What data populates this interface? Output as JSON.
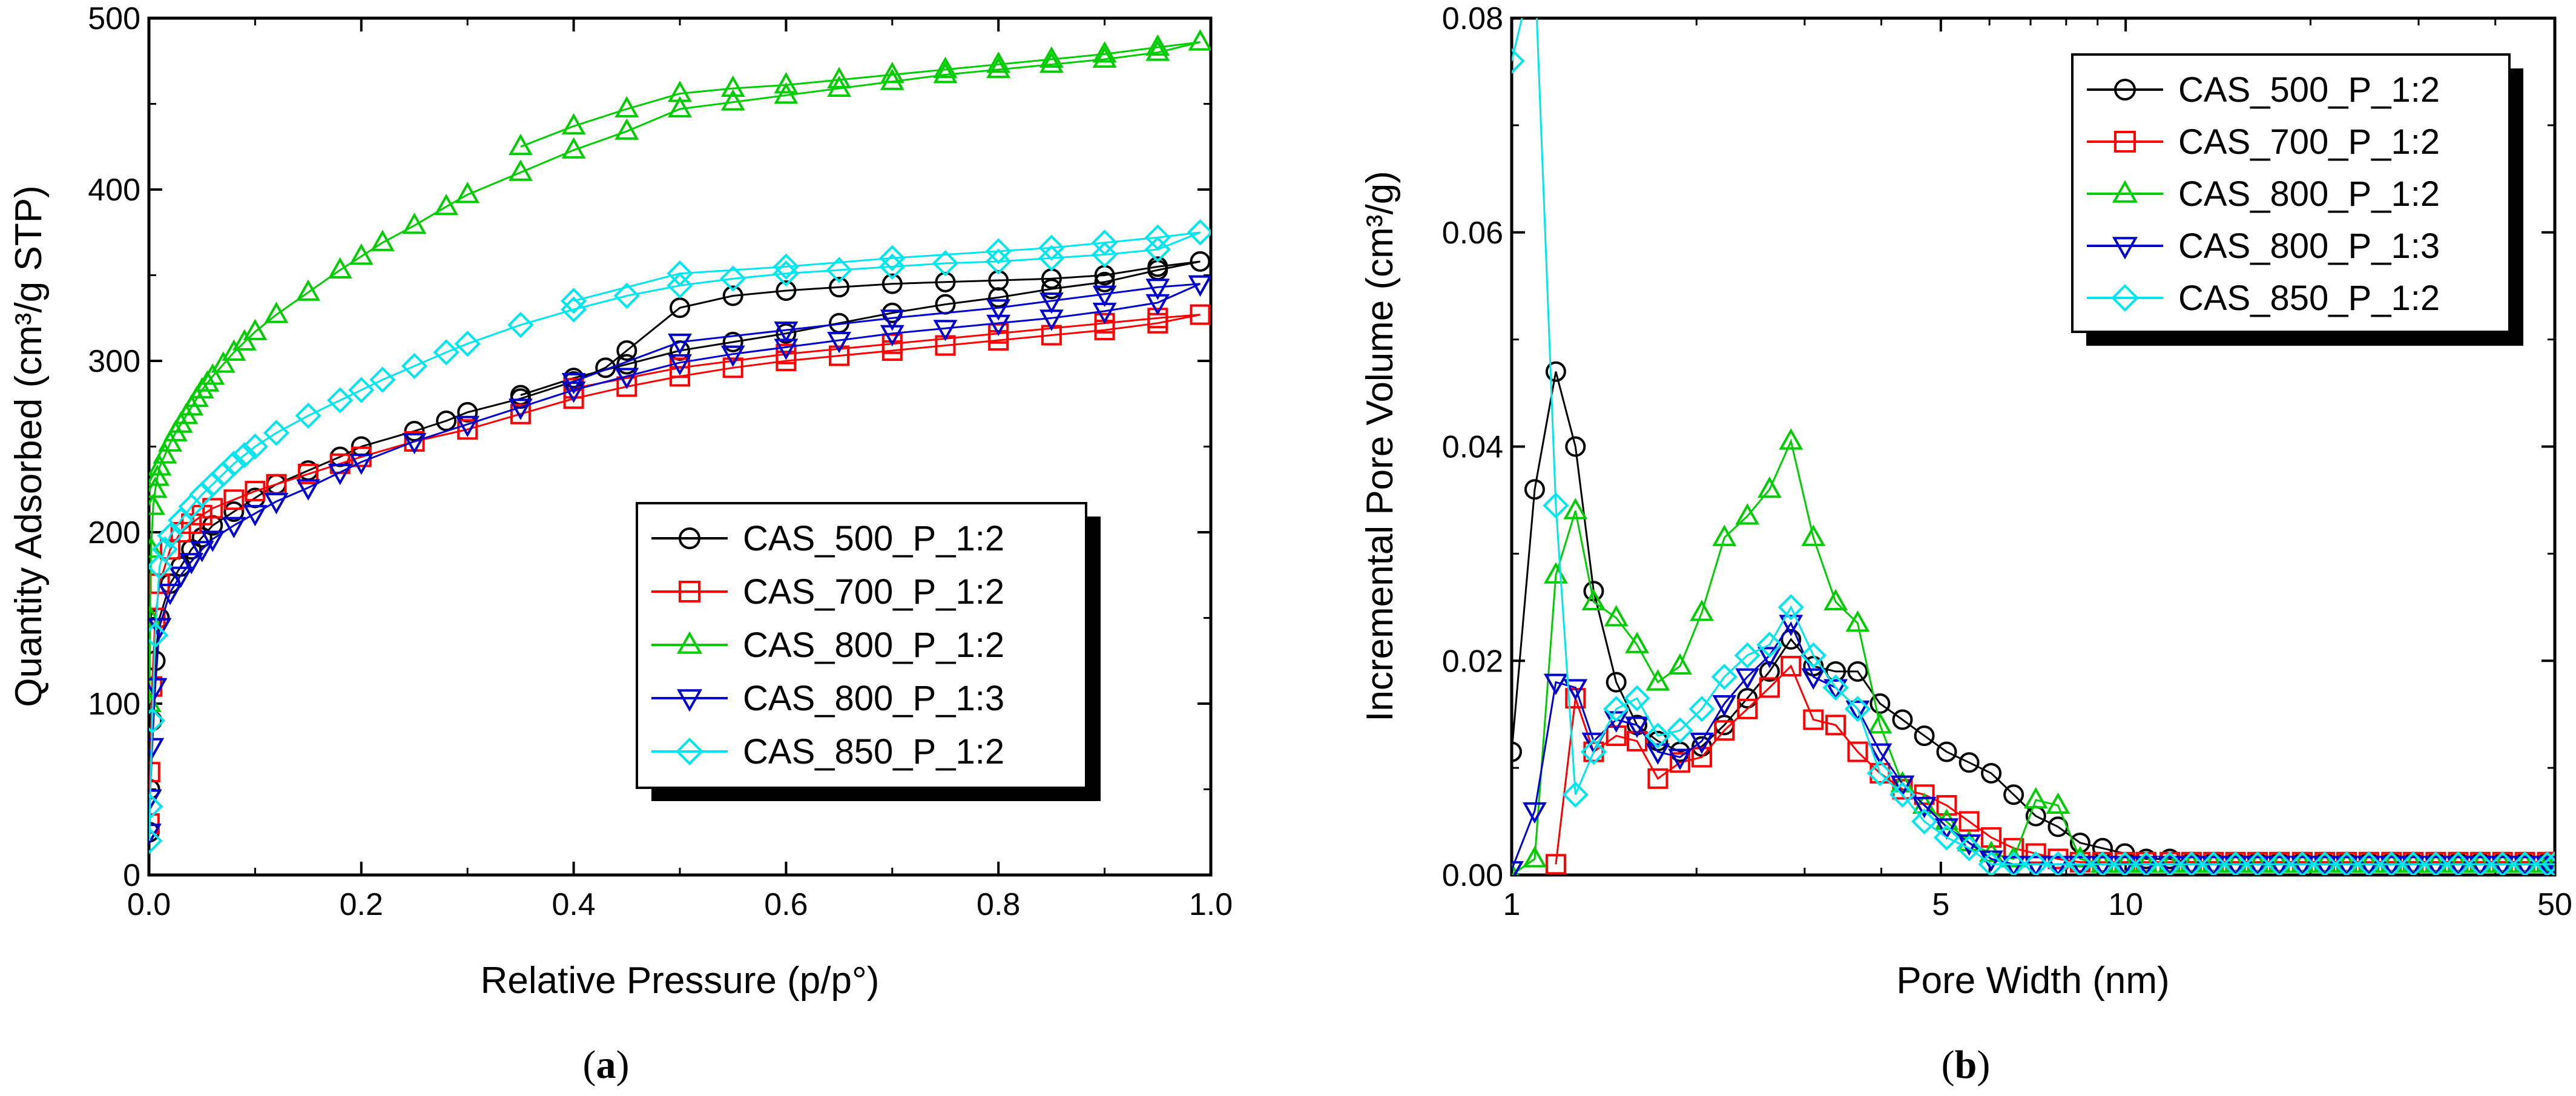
{
  "chart_data": [
    {
      "type": "scatter",
      "panel_label": "a",
      "xlabel": "Relative Pressure (p/p°)",
      "ylabel": "Quantity Adsorbed (cm³/g STP)",
      "xlim": [
        0,
        1.0
      ],
      "ylim": [
        0,
        500
      ],
      "xticks": [
        "0.0",
        "0.2",
        "0.4",
        "0.6",
        "0.8",
        "1.0"
      ],
      "yticks": [
        "0",
        "100",
        "200",
        "300",
        "400",
        "500"
      ],
      "legend_position": "bottom-right",
      "series": [
        {
          "name": "CAS_500_P_1:2",
          "color": "#000000",
          "marker": "circle",
          "x": [
            0.0005,
            0.001,
            0.003,
            0.006,
            0.01,
            0.02,
            0.03,
            0.04,
            0.05,
            0.06,
            0.08,
            0.1,
            0.12,
            0.15,
            0.18,
            0.2,
            0.25,
            0.28,
            0.3,
            0.35,
            0.4,
            0.43,
            0.45,
            0.5,
            0.55,
            0.6,
            0.65,
            0.7,
            0.75,
            0.8,
            0.85,
            0.9,
            0.95,
            0.99,
            0.95,
            0.9,
            0.85,
            0.8,
            0.75,
            0.7,
            0.65,
            0.6,
            0.55,
            0.5,
            0.45,
            0.4,
            0.35
          ],
          "y": [
            25,
            50,
            90,
            125,
            150,
            170,
            180,
            190,
            197,
            204,
            212,
            220,
            228,
            236,
            244,
            250,
            259,
            265,
            270,
            278,
            288,
            296,
            306,
            331,
            338,
            341,
            343,
            345,
            346,
            347,
            348,
            350,
            355,
            358,
            353,
            346,
            342,
            337,
            333,
            328,
            322,
            316,
            311,
            306,
            298,
            290,
            280
          ]
        },
        {
          "name": "CAS_700_P_1:2",
          "color": "#ff0000",
          "marker": "square",
          "x": [
            0.0005,
            0.001,
            0.003,
            0.006,
            0.01,
            0.02,
            0.03,
            0.04,
            0.05,
            0.06,
            0.08,
            0.1,
            0.12,
            0.15,
            0.18,
            0.2,
            0.25,
            0.3,
            0.35,
            0.4,
            0.45,
            0.5,
            0.55,
            0.6,
            0.65,
            0.7,
            0.75,
            0.8,
            0.85,
            0.9,
            0.95,
            0.99,
            0.95,
            0.9,
            0.8,
            0.7,
            0.6,
            0.5,
            0.4
          ],
          "y": [
            30,
            60,
            110,
            150,
            170,
            190,
            200,
            205,
            210,
            214,
            219,
            224,
            228,
            234,
            240,
            244,
            253,
            260,
            269,
            278,
            285,
            291,
            296,
            300,
            303,
            306,
            309,
            312,
            315,
            318,
            322,
            327,
            325,
            322,
            316,
            310,
            304,
            296,
            284
          ]
        },
        {
          "name": "CAS_800_P_1:2",
          "color": "#00cc00",
          "marker": "triangle-up",
          "x": [
            0.0005,
            0.001,
            0.002,
            0.004,
            0.006,
            0.008,
            0.01,
            0.015,
            0.02,
            0.025,
            0.03,
            0.035,
            0.04,
            0.045,
            0.05,
            0.055,
            0.06,
            0.07,
            0.08,
            0.09,
            0.1,
            0.12,
            0.15,
            0.18,
            0.2,
            0.22,
            0.25,
            0.28,
            0.3,
            0.35,
            0.4,
            0.45,
            0.5,
            0.55,
            0.6,
            0.65,
            0.7,
            0.75,
            0.8,
            0.85,
            0.9,
            0.95,
            0.99,
            0.95,
            0.9,
            0.85,
            0.8,
            0.75,
            0.7,
            0.65,
            0.6,
            0.55,
            0.5,
            0.45,
            0.4,
            0.35
          ],
          "y": [
            100,
            150,
            190,
            215,
            225,
            232,
            238,
            245,
            252,
            258,
            263,
            268,
            273,
            278,
            283,
            287,
            291,
            298,
            305,
            311,
            317,
            327,
            340,
            353,
            361,
            369,
            379,
            390,
            397,
            410,
            423,
            434,
            447,
            451,
            455,
            459,
            463,
            467,
            470,
            473,
            476,
            480,
            486,
            483,
            479,
            476,
            473,
            470,
            467,
            464,
            461,
            459,
            456,
            447,
            437,
            425
          ]
        },
        {
          "name": "CAS_800_P_1:3",
          "color": "#0000cc",
          "marker": "triangle-down",
          "x": [
            0.0005,
            0.001,
            0.003,
            0.006,
            0.01,
            0.02,
            0.03,
            0.04,
            0.05,
            0.06,
            0.08,
            0.1,
            0.12,
            0.15,
            0.18,
            0.2,
            0.25,
            0.3,
            0.35,
            0.4,
            0.45,
            0.5,
            0.55,
            0.6,
            0.65,
            0.7,
            0.75,
            0.8,
            0.85,
            0.9,
            0.95,
            0.99,
            0.95,
            0.9,
            0.85,
            0.8,
            0.7,
            0.6,
            0.5,
            0.4
          ],
          "y": [
            25,
            45,
            75,
            110,
            145,
            165,
            175,
            183,
            190,
            196,
            204,
            211,
            218,
            226,
            235,
            241,
            253,
            263,
            273,
            283,
            291,
            299,
            304,
            308,
            312,
            316,
            319,
            322,
            325,
            329,
            334,
            345,
            343,
            339,
            335,
            331,
            325,
            318,
            311,
            288
          ]
        },
        {
          "name": "CAS_850_P_1:2",
          "color": "#00e5ee",
          "marker": "diamond",
          "x": [
            0.0005,
            0.001,
            0.003,
            0.006,
            0.01,
            0.015,
            0.02,
            0.03,
            0.04,
            0.05,
            0.06,
            0.07,
            0.08,
            0.09,
            0.1,
            0.12,
            0.15,
            0.18,
            0.2,
            0.22,
            0.25,
            0.28,
            0.3,
            0.35,
            0.4,
            0.45,
            0.5,
            0.55,
            0.6,
            0.65,
            0.7,
            0.75,
            0.8,
            0.85,
            0.9,
            0.95,
            0.99,
            0.95,
            0.9,
            0.85,
            0.8,
            0.7,
            0.6,
            0.5,
            0.4
          ],
          "y": [
            20,
            40,
            90,
            140,
            180,
            190,
            198,
            207,
            215,
            222,
            228,
            234,
            240,
            245,
            250,
            258,
            268,
            277,
            283,
            289,
            297,
            305,
            310,
            321,
            330,
            338,
            344,
            348,
            351,
            353,
            355,
            357,
            358,
            360,
            362,
            365,
            375,
            372,
            369,
            366,
            364,
            360,
            355,
            351,
            335
          ]
        }
      ]
    },
    {
      "type": "line",
      "panel_label": "b",
      "xlabel": "Pore Width (nm)",
      "ylabel": "Incremental Pore Volume (cm³/g)",
      "xscale": "log",
      "xlim": [
        1,
        50
      ],
      "ylim": [
        0,
        0.08
      ],
      "xticks": [
        "1",
        "5",
        "10",
        "50"
      ],
      "xtick_values": [
        1,
        5,
        10,
        50
      ],
      "yticks": [
        "0.00",
        "0.02",
        "0.04",
        "0.06",
        "0.08"
      ],
      "legend_position": "top-right",
      "series": [
        {
          "name": "CAS_500_P_1:2",
          "color": "#000000",
          "marker": "circle",
          "x": [
            1.0,
            1.09,
            1.18,
            1.27,
            1.36,
            1.48,
            1.6,
            1.73,
            1.88,
            2.04,
            2.22,
            2.42,
            2.63,
            2.85,
            3.1,
            3.37,
            3.66,
            3.98,
            4.33,
            4.7,
            5.11,
            5.56,
            6.04,
            6.57,
            7.14,
            7.76,
            8.43,
            9.17,
            9.97,
            10.8,
            11.8,
            12.8,
            13.9,
            15.1,
            16.4,
            17.8,
            19.4,
            21.1,
            22.9,
            24.9,
            27.1,
            29.4,
            32,
            34.8,
            37.8,
            41.1,
            44.7,
            48.6,
            50
          ],
          "y": [
            0.0115,
            0.036,
            0.047,
            0.04,
            0.0265,
            0.018,
            0.014,
            0.0125,
            0.0115,
            0.012,
            0.014,
            0.0165,
            0.019,
            0.022,
            0.0195,
            0.019,
            0.019,
            0.016,
            0.0145,
            0.013,
            0.0115,
            0.0105,
            0.0095,
            0.0075,
            0.0055,
            0.0045,
            0.003,
            0.0025,
            0.002,
            0.0015,
            0.0015,
            0.0012,
            0.0012,
            0.0012,
            0.0012,
            0.0012,
            0.0012,
            0.0012,
            0.0012,
            0.0012,
            0.0012,
            0.0012,
            0.0012,
            0.0012,
            0.0012,
            0.0012,
            0.0012,
            0.0012,
            0.0012
          ]
        },
        {
          "name": "CAS_700_P_1:2",
          "color": "#ff0000",
          "marker": "square",
          "x": [
            1.18,
            1.27,
            1.36,
            1.48,
            1.6,
            1.73,
            1.88,
            2.04,
            2.22,
            2.42,
            2.63,
            2.85,
            3.1,
            3.37,
            3.66,
            3.98,
            4.33,
            4.7,
            5.11,
            5.56,
            6.04,
            6.57,
            7.14,
            7.76,
            8.43,
            9.17,
            9.97,
            10.8,
            11.8,
            12.8,
            13.9,
            15.1,
            16.4,
            17.8,
            19.4,
            21.1,
            22.9,
            24.9,
            27.1,
            29.4,
            32,
            34.8,
            37.8,
            41.1,
            44.7,
            48.6,
            50
          ],
          "y": [
            0.001,
            0.0165,
            0.0115,
            0.013,
            0.0125,
            0.009,
            0.0105,
            0.011,
            0.0135,
            0.0155,
            0.0175,
            0.0195,
            0.0145,
            0.014,
            0.0115,
            0.0095,
            0.008,
            0.0075,
            0.0065,
            0.005,
            0.0035,
            0.0025,
            0.002,
            0.0015,
            0.0012,
            0.0012,
            0.0012,
            0.0012,
            0.0012,
            0.0012,
            0.0012,
            0.0012,
            0.0012,
            0.0012,
            0.0012,
            0.0012,
            0.0012,
            0.0012,
            0.0012,
            0.0012,
            0.0012,
            0.0012,
            0.0012,
            0.0012,
            0.0012,
            0.0012,
            0.0012
          ]
        },
        {
          "name": "CAS_800_P_1:2",
          "color": "#00cc00",
          "marker": "triangle-up",
          "x": [
            1.0,
            1.09,
            1.18,
            1.27,
            1.36,
            1.48,
            1.6,
            1.73,
            1.88,
            2.04,
            2.22,
            2.42,
            2.63,
            2.85,
            3.1,
            3.37,
            3.66,
            3.98,
            4.33,
            4.7,
            5.11,
            5.56,
            6.04,
            6.57,
            7.14,
            7.76,
            8.43,
            9.17,
            9.97,
            10.8,
            11.8,
            12.8,
            13.9,
            15.1,
            16.4,
            17.8,
            19.4,
            21.1,
            22.9,
            24.9,
            27.1,
            29.4,
            32,
            34.8,
            37.8,
            41.1,
            44.7,
            48.6,
            50
          ],
          "y": [
            0.0,
            0.0015,
            0.028,
            0.034,
            0.0255,
            0.024,
            0.0215,
            0.018,
            0.0195,
            0.0245,
            0.0315,
            0.0335,
            0.036,
            0.0405,
            0.0315,
            0.0255,
            0.0235,
            0.014,
            0.0085,
            0.0065,
            0.005,
            0.003,
            0.002,
            0.0015,
            0.007,
            0.0065,
            0.0015,
            0.001,
            0.001,
            0.001,
            0.001,
            0.001,
            0.001,
            0.001,
            0.001,
            0.001,
            0.001,
            0.001,
            0.001,
            0.001,
            0.001,
            0.001,
            0.001,
            0.001,
            0.001,
            0.001,
            0.001,
            0.001,
            0.001
          ]
        },
        {
          "name": "CAS_800_P_1:3",
          "color": "#0000cc",
          "marker": "triangle-down",
          "x": [
            1.0,
            1.09,
            1.18,
            1.27,
            1.36,
            1.48,
            1.6,
            1.73,
            1.88,
            2.04,
            2.22,
            2.42,
            2.63,
            2.85,
            3.1,
            3.37,
            3.66,
            3.98,
            4.33,
            4.7,
            5.11,
            5.56,
            6.04,
            6.57,
            7.14,
            7.76,
            8.43,
            9.17,
            9.97,
            10.8,
            11.8,
            12.8,
            13.9,
            15.1,
            16.4,
            17.8,
            19.4,
            21.1,
            22.9,
            24.9,
            27.1,
            29.4,
            32,
            34.8,
            37.8,
            41.1,
            44.7,
            48.6,
            50
          ],
          "y": [
            0.0005,
            0.006,
            0.018,
            0.0175,
            0.0125,
            0.0145,
            0.014,
            0.0115,
            0.011,
            0.0125,
            0.016,
            0.0185,
            0.0205,
            0.0235,
            0.0185,
            0.0175,
            0.0155,
            0.0115,
            0.0085,
            0.0065,
            0.0045,
            0.003,
            0.0015,
            0.001,
            0.001,
            0.001,
            0.001,
            0.001,
            0.001,
            0.001,
            0.001,
            0.001,
            0.001,
            0.001,
            0.001,
            0.001,
            0.001,
            0.001,
            0.001,
            0.001,
            0.001,
            0.001,
            0.001,
            0.001,
            0.001,
            0.001,
            0.001,
            0.001,
            0.001
          ]
        },
        {
          "name": "CAS_850_P_1:2",
          "color": "#00e5ee",
          "marker": "diamond",
          "x": [
            1.0,
            1.09,
            1.18,
            1.27,
            1.36,
            1.48,
            1.6,
            1.73,
            1.88,
            2.04,
            2.22,
            2.42,
            2.63,
            2.85,
            3.1,
            3.37,
            3.66,
            3.98,
            4.33,
            4.7,
            5.11,
            5.56,
            6.04,
            6.57,
            7.14,
            7.76,
            8.43,
            9.17,
            9.97,
            10.8,
            11.8,
            12.8,
            13.9,
            15.1,
            16.4,
            17.8,
            19.4,
            21.1,
            22.9,
            24.9,
            27.1,
            29.4,
            32,
            34.8,
            37.8,
            41.1,
            44.7,
            48.6,
            50
          ],
          "y": [
            0.076,
            0.085,
            0.0345,
            0.0075,
            0.0115,
            0.0155,
            0.0165,
            0.013,
            0.0135,
            0.0155,
            0.0185,
            0.0205,
            0.0215,
            0.025,
            0.0205,
            0.0175,
            0.0155,
            0.0095,
            0.0075,
            0.005,
            0.0035,
            0.0025,
            0.001,
            0.001,
            0.001,
            0.001,
            0.001,
            0.001,
            0.001,
            0.001,
            0.001,
            0.001,
            0.001,
            0.001,
            0.001,
            0.001,
            0.001,
            0.001,
            0.001,
            0.001,
            0.001,
            0.001,
            0.001,
            0.001,
            0.001,
            0.001,
            0.001,
            0.001,
            0.001
          ]
        }
      ]
    }
  ]
}
